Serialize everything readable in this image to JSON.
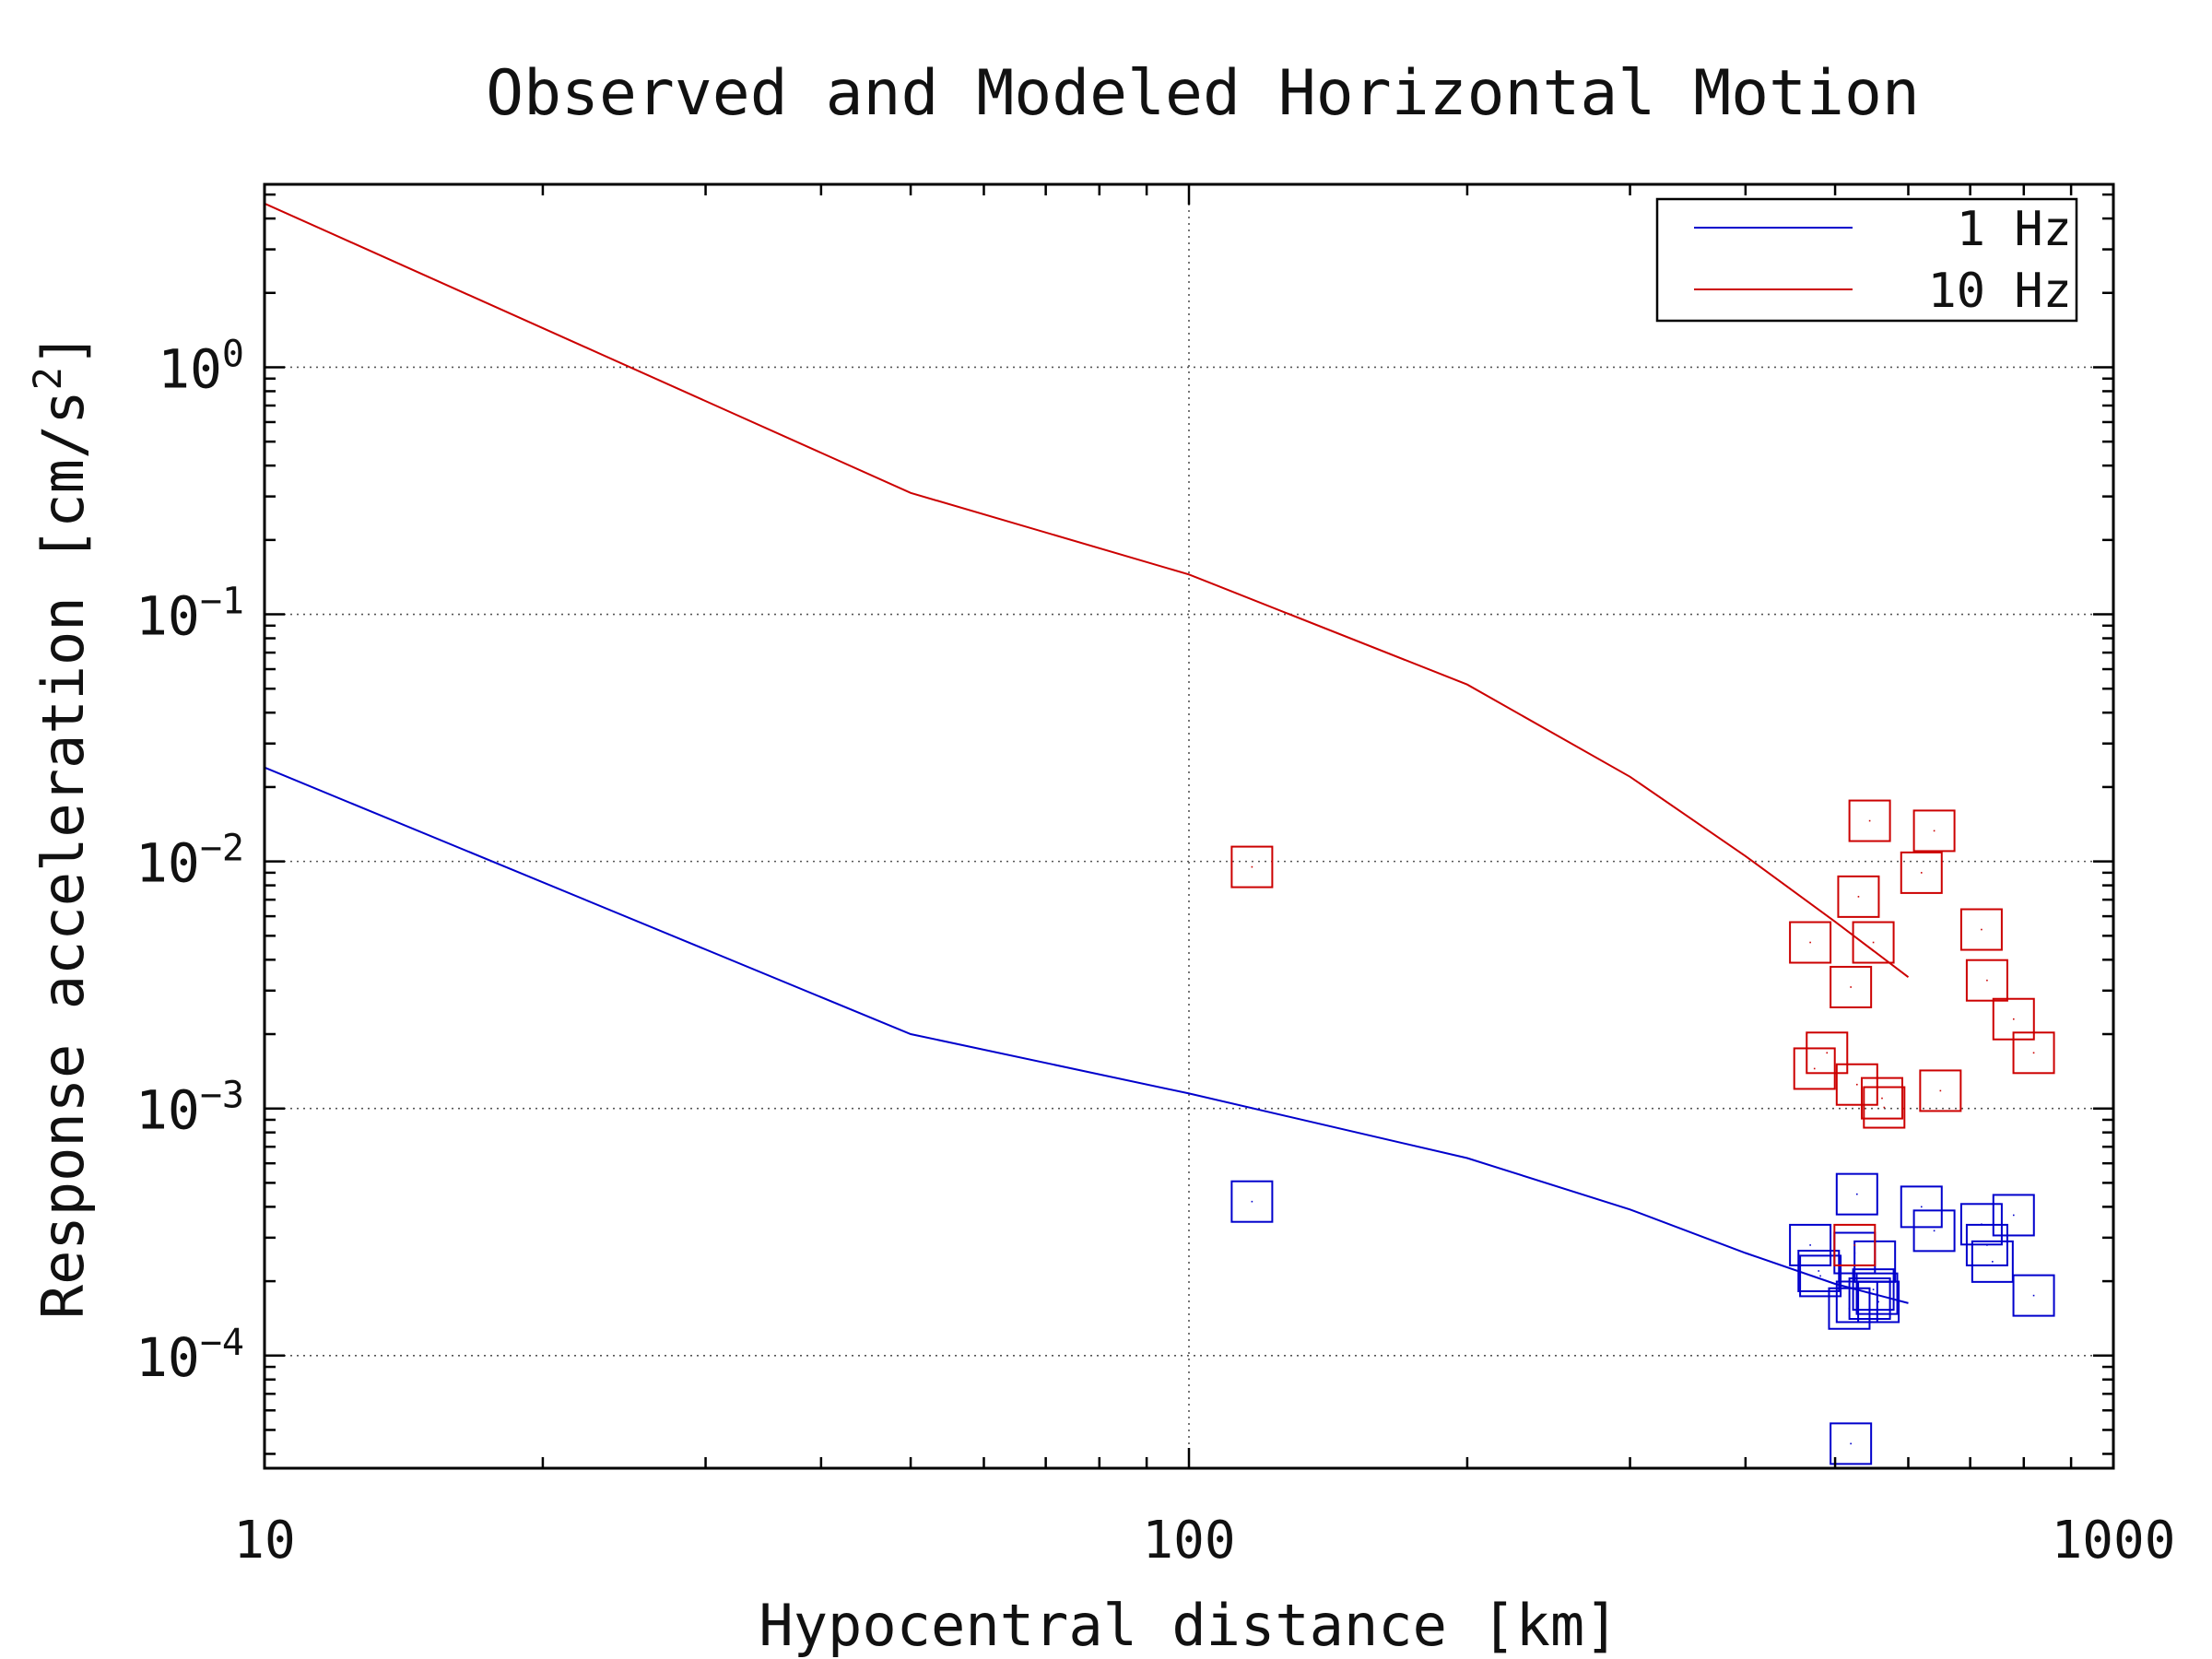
{
  "chart_data": {
    "type": "scatter",
    "title": "Observed and Modeled Horizontal Motion",
    "xlabel": "Hypocentral distance [km]",
    "ylabel_main": "Response acceleration [cm/s",
    "ylabel_sup": "2",
    "ylabel_tail": "]",
    "x_scale": "log",
    "y_scale": "log",
    "xlim": [
      10,
      1000
    ],
    "ylim": [
      3.5e-05,
      5.5
    ],
    "grid": true,
    "legend_position": "top-right",
    "x_ticks": [
      {
        "value": 10,
        "label": "10"
      },
      {
        "value": 100,
        "label": "100"
      },
      {
        "value": 1000,
        "label": "1000"
      }
    ],
    "y_ticks": [
      {
        "value": 1,
        "base": "10",
        "exp": "0"
      },
      {
        "value": 0.1,
        "base": "10",
        "exp": "−1"
      },
      {
        "value": 0.01,
        "base": "10",
        "exp": "−2"
      },
      {
        "value": 0.001,
        "base": "10",
        "exp": "−3"
      },
      {
        "value": 0.0001,
        "base": "10",
        "exp": "−4"
      }
    ],
    "series": [
      {
        "name": "1 Hz",
        "color": "#0000cc",
        "model_x": [
          10,
          50,
          100,
          200,
          300,
          400,
          500,
          600
        ],
        "model_y": [
          0.024,
          0.002,
          0.00115,
          0.00063,
          0.00039,
          0.00026,
          0.000195,
          0.000163
        ],
        "observed_x": [
          117,
          520,
          528,
          525,
          528,
          545,
          550,
          552,
          555,
          557,
          470,
          480,
          482,
          620,
          640,
          720,
          730,
          740,
          780,
          820,
          518
        ],
        "observed_y": [
          0.00042,
          4.4e-05,
          0.00045,
          0.00026,
          0.000165,
          0.00017,
          0.000185,
          0.00024,
          0.000178,
          0.000165,
          0.00028,
          0.00022,
          0.00021,
          0.0004,
          0.00032,
          0.00034,
          0.00028,
          0.00024,
          0.00037,
          0.000175,
          0.000155
        ]
      },
      {
        "name": "10 Hz",
        "color": "#cc0000",
        "model_x": [
          10,
          50,
          100,
          200,
          300,
          400,
          500,
          600
        ],
        "model_y": [
          4.6,
          0.31,
          0.145,
          0.052,
          0.022,
          0.0105,
          0.0057,
          0.0034
        ],
        "observed_x": [
          117,
          470,
          490,
          520,
          530,
          545,
          550,
          562,
          565,
          620,
          640,
          650,
          720,
          730,
          780,
          820,
          475,
          525,
          528
        ],
        "observed_y": [
          0.0095,
          0.0047,
          0.00168,
          0.0031,
          0.0072,
          0.0146,
          0.0047,
          0.0011,
          0.00101,
          0.009,
          0.0133,
          0.00118,
          0.0053,
          0.0033,
          0.0023,
          0.00168,
          0.00145,
          0.00028,
          0.00125
        ]
      }
    ]
  }
}
